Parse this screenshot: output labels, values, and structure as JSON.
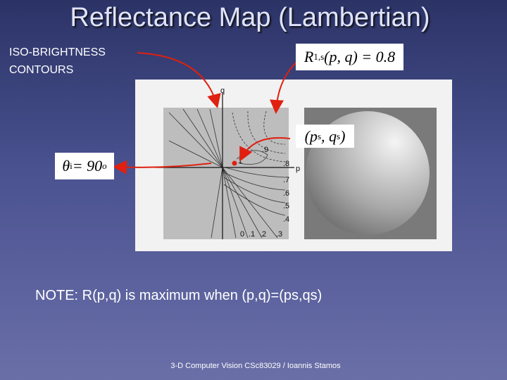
{
  "header": {
    "title": "Reflectance Map (Lambertian)"
  },
  "labels": {
    "iso": [
      "ISO-BRIGHTNESS",
      "CONTOURS"
    ]
  },
  "equations": {
    "contour": [
      {
        "t": "R"
      },
      {
        "t": "1,s",
        "k": "sub"
      },
      {
        "t": "(p, q) = 0.8"
      }
    ],
    "source": [
      {
        "t": "(p"
      },
      {
        "t": "s",
        "k": "sub"
      },
      {
        "t": ", q"
      },
      {
        "t": "s",
        "k": "sub"
      },
      {
        "t": ")"
      }
    ],
    "angle": [
      {
        "t": "θ"
      },
      {
        "t": "i",
        "k": "sub"
      },
      {
        "t": " = 90"
      },
      {
        "t": "o",
        "k": "sup"
      }
    ]
  },
  "figure": {
    "axis_names": {
      "q": "q",
      "p": "p"
    },
    "contour_labels": [
      ".9",
      "1",
      ".8",
      ".7",
      ".6",
      ".5",
      ".4"
    ],
    "axis_ticks": [
      "0",
      ".1",
      ".2",
      ".3"
    ]
  },
  "note": "NOTE: R(p,q) is maximum when (p,q)=(ps,qs)",
  "footer": "3-D Computer Vision CSc83029 / Ioannis Stamos"
}
